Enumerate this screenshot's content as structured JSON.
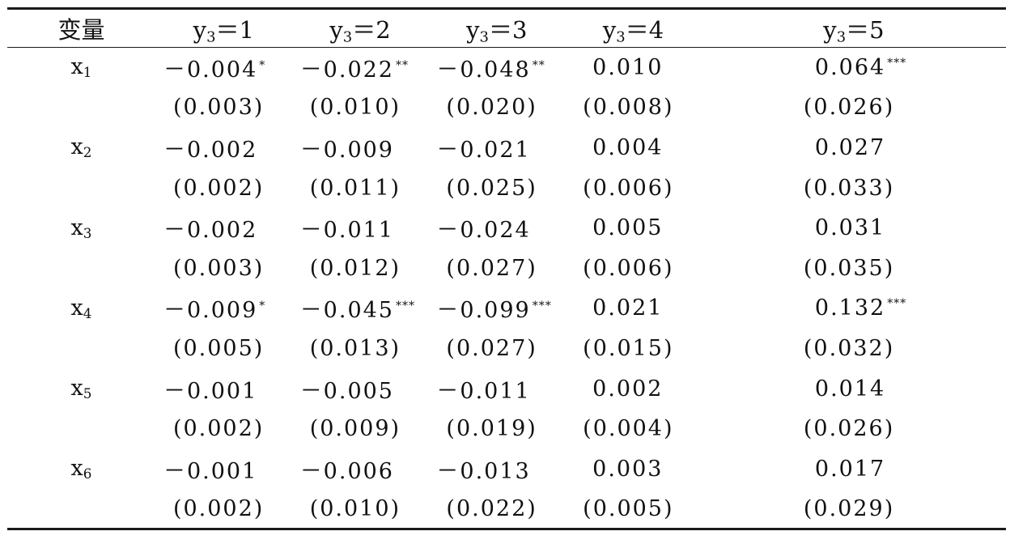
{
  "header": {
    "var_label": "变量",
    "columns": [
      {
        "base": "y",
        "sub": "3",
        "eq": "＝1"
      },
      {
        "base": "y",
        "sub": "3",
        "eq": "＝2"
      },
      {
        "base": "y",
        "sub": "3",
        "eq": "＝3"
      },
      {
        "base": "y",
        "sub": "3",
        "eq": "＝4"
      },
      {
        "base": "y",
        "sub": "3",
        "eq": "＝5"
      }
    ]
  },
  "rows": [
    {
      "var": {
        "base": "x",
        "sub": "1"
      },
      "coef": [
        {
          "v": "－0.004",
          "s": "*"
        },
        {
          "v": "－0.022",
          "s": "**"
        },
        {
          "v": "－0.048",
          "s": "**"
        },
        {
          "v": "0.010",
          "s": ""
        },
        {
          "v": "0.064",
          "s": "***"
        }
      ],
      "se": [
        "(0.003)",
        "(0.010)",
        "(0.020)",
        "(0.008)",
        "(0.026)"
      ]
    },
    {
      "var": {
        "base": "x",
        "sub": "2"
      },
      "coef": [
        {
          "v": "－0.002",
          "s": ""
        },
        {
          "v": "－0.009",
          "s": ""
        },
        {
          "v": "－0.021",
          "s": ""
        },
        {
          "v": "0.004",
          "s": ""
        },
        {
          "v": "0.027",
          "s": ""
        }
      ],
      "se": [
        "(0.002)",
        "(0.011)",
        "(0.025)",
        "(0.006)",
        "(0.033)"
      ]
    },
    {
      "var": {
        "base": "x",
        "sub": "3"
      },
      "coef": [
        {
          "v": "－0.002",
          "s": ""
        },
        {
          "v": "－0.011",
          "s": ""
        },
        {
          "v": "－0.024",
          "s": ""
        },
        {
          "v": "0.005",
          "s": ""
        },
        {
          "v": "0.031",
          "s": ""
        }
      ],
      "se": [
        "(0.003)",
        "(0.012)",
        "(0.027)",
        "(0.006)",
        "(0.035)"
      ]
    },
    {
      "var": {
        "base": "x",
        "sub": "4"
      },
      "coef": [
        {
          "v": "－0.009",
          "s": "*"
        },
        {
          "v": "－0.045",
          "s": "***"
        },
        {
          "v": "－0.099",
          "s": "***"
        },
        {
          "v": "0.021",
          "s": ""
        },
        {
          "v": "0.132",
          "s": "***"
        }
      ],
      "se": [
        "(0.005)",
        "(0.013)",
        "(0.027)",
        "(0.015)",
        "(0.032)"
      ]
    },
    {
      "var": {
        "base": "x",
        "sub": "5"
      },
      "coef": [
        {
          "v": "－0.001",
          "s": ""
        },
        {
          "v": "－0.005",
          "s": ""
        },
        {
          "v": "－0.011",
          "s": ""
        },
        {
          "v": "0.002",
          "s": ""
        },
        {
          "v": "0.014",
          "s": ""
        }
      ],
      "se": [
        "(0.002)",
        "(0.009)",
        "(0.019)",
        "(0.004)",
        "(0.026)"
      ]
    },
    {
      "var": {
        "base": "x",
        "sub": "6"
      },
      "coef": [
        {
          "v": "－0.001",
          "s": ""
        },
        {
          "v": "－0.006",
          "s": ""
        },
        {
          "v": "－0.013",
          "s": ""
        },
        {
          "v": "0.003",
          "s": ""
        },
        {
          "v": "0.017",
          "s": ""
        }
      ],
      "se": [
        "(0.002)",
        "(0.010)",
        "(0.022)",
        "(0.005)",
        "(0.029)"
      ]
    }
  ]
}
